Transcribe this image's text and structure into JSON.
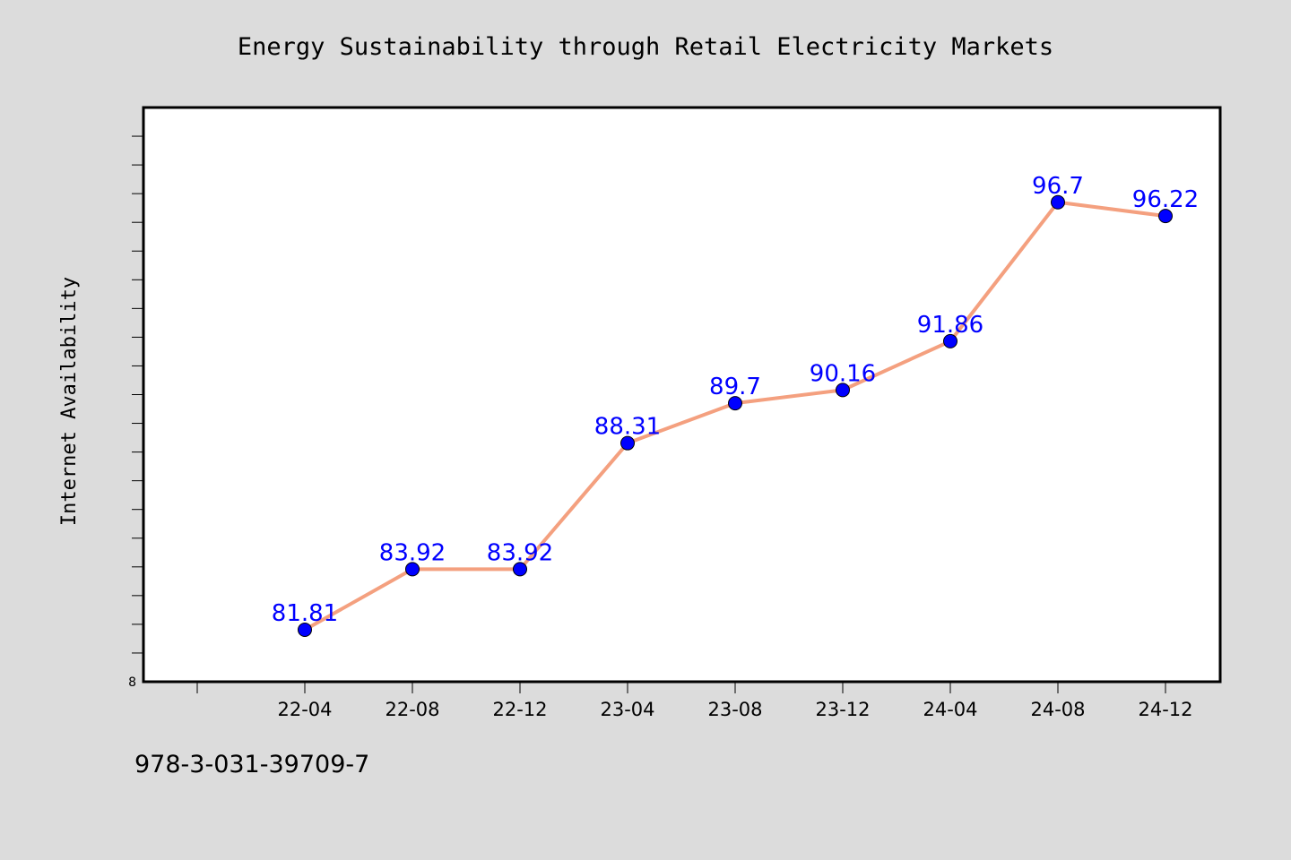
{
  "chart_data": {
    "type": "line",
    "title": "Energy Sustainability through Retail Electricity Markets",
    "xlabel": "",
    "ylabel": "Internet Availability",
    "categories": [
      "22-04",
      "22-08",
      "22-12",
      "23-04",
      "23-08",
      "23-12",
      "24-04",
      "24-08",
      "24-12"
    ],
    "series": [
      {
        "values": [
          81.81,
          83.92,
          83.92,
          88.31,
          89.7,
          90.16,
          91.86,
          96.7,
          96.22
        ]
      }
    ],
    "data_labels": [
      "81.81",
      "83.92",
      "83.92",
      "88.31",
      "89.7",
      "90.16",
      "91.86",
      "96.7",
      "96.22"
    ],
    "ylim": [
      80,
      100
    ],
    "y_tick_labels": [
      "8"
    ],
    "grid": false,
    "legend": "none",
    "colors": {
      "line": "#f4a07f",
      "marker": "#0000ff",
      "data_label": "#0000ff",
      "background": "#dcdcdc",
      "plot_background": "#ffffff"
    }
  },
  "footnote": "978-3-031-39709-7"
}
